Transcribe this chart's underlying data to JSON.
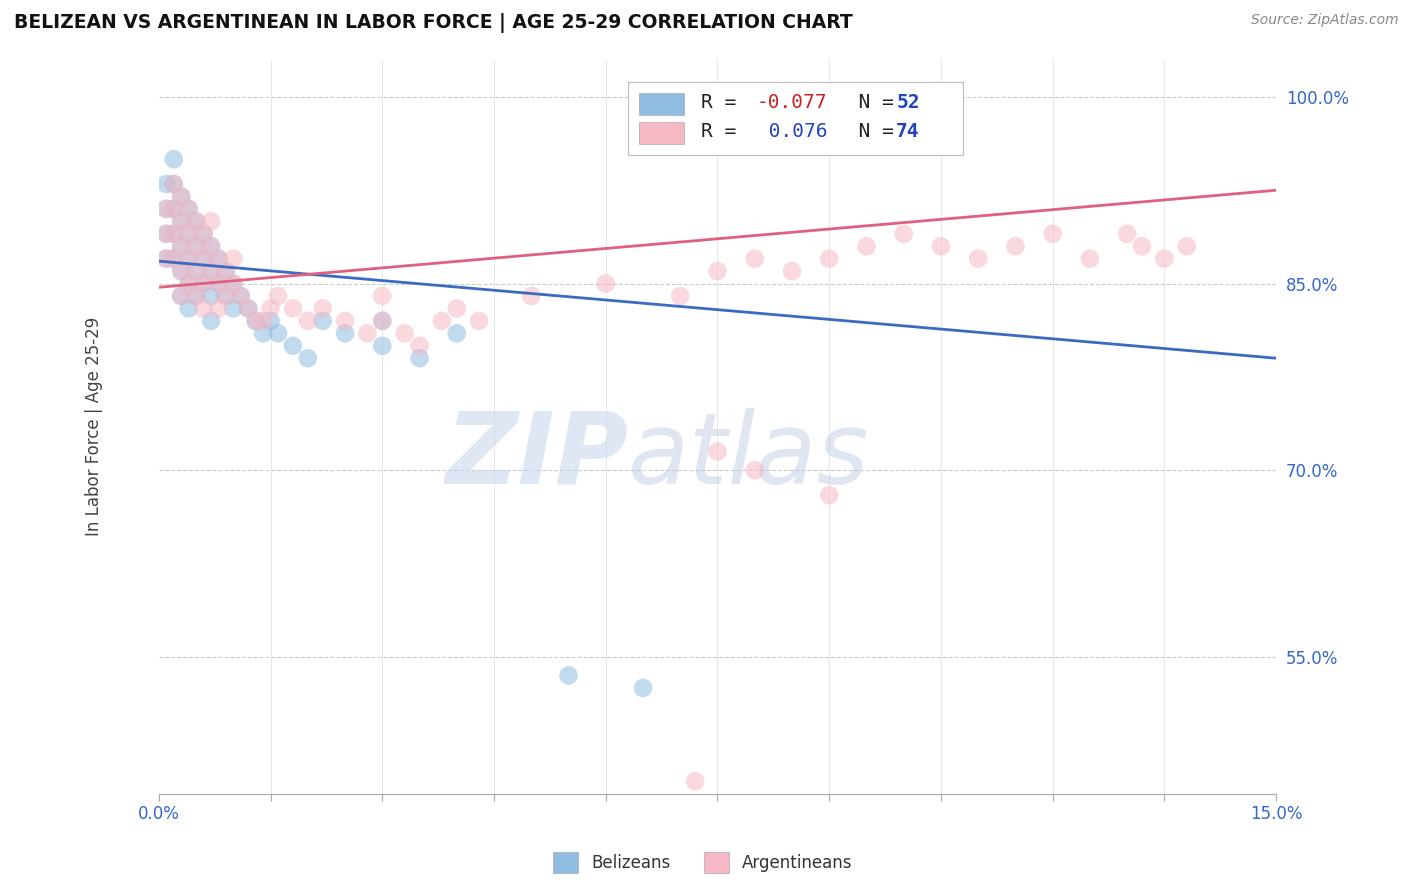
{
  "title": "BELIZEAN VS ARGENTINEAN IN LABOR FORCE | AGE 25-29 CORRELATION CHART",
  "source": "Source: ZipAtlas.com",
  "ylabel": "In Labor Force | Age 25-29",
  "xlim": [
    0.0,
    0.15
  ],
  "ylim": [
    0.44,
    1.03
  ],
  "xticks": [
    0.0,
    0.015,
    0.03,
    0.045,
    0.06,
    0.075,
    0.09,
    0.105,
    0.12,
    0.135,
    0.15
  ],
  "yticks": [
    0.55,
    0.7,
    0.85,
    1.0
  ],
  "ytick_labels": [
    "55.0%",
    "70.0%",
    "85.0%",
    "100.0%"
  ],
  "blue_R": -0.077,
  "blue_N": 52,
  "pink_R": 0.076,
  "pink_N": 74,
  "blue_color": "#8fbce0",
  "pink_color": "#f5b8c4",
  "blue_line_color": "#3a6bc0",
  "pink_line_color": "#e06080",
  "legend_R_color": "#2244bb",
  "watermark_zip": "ZIP",
  "watermark_atlas": "atlas",
  "blue_x": [
    0.001,
    0.001,
    0.001,
    0.001,
    0.002,
    0.002,
    0.002,
    0.002,
    0.002,
    0.003,
    0.003,
    0.003,
    0.003,
    0.003,
    0.004,
    0.004,
    0.004,
    0.004,
    0.004,
    0.005,
    0.005,
    0.005,
    0.005,
    0.006,
    0.006,
    0.006,
    0.007,
    0.007,
    0.007,
    0.007,
    0.008,
    0.008,
    0.009,
    0.009,
    0.01,
    0.01,
    0.011,
    0.012,
    0.013,
    0.014,
    0.015,
    0.016,
    0.018,
    0.02,
    0.022,
    0.025,
    0.03,
    0.03,
    0.035,
    0.04,
    0.055,
    0.065
  ],
  "blue_y": [
    0.93,
    0.91,
    0.89,
    0.87,
    0.95,
    0.93,
    0.91,
    0.89,
    0.87,
    0.92,
    0.9,
    0.88,
    0.86,
    0.84,
    0.91,
    0.89,
    0.87,
    0.85,
    0.83,
    0.9,
    0.88,
    0.86,
    0.84,
    0.89,
    0.87,
    0.85,
    0.88,
    0.86,
    0.84,
    0.82,
    0.87,
    0.85,
    0.86,
    0.84,
    0.85,
    0.83,
    0.84,
    0.83,
    0.82,
    0.81,
    0.82,
    0.81,
    0.8,
    0.79,
    0.82,
    0.81,
    0.82,
    0.8,
    0.79,
    0.81,
    0.535,
    0.525
  ],
  "pink_x": [
    0.001,
    0.001,
    0.001,
    0.002,
    0.002,
    0.002,
    0.002,
    0.003,
    0.003,
    0.003,
    0.003,
    0.003,
    0.004,
    0.004,
    0.004,
    0.004,
    0.005,
    0.005,
    0.005,
    0.005,
    0.006,
    0.006,
    0.006,
    0.006,
    0.007,
    0.007,
    0.007,
    0.008,
    0.008,
    0.008,
    0.009,
    0.009,
    0.01,
    0.01,
    0.011,
    0.012,
    0.013,
    0.014,
    0.015,
    0.016,
    0.018,
    0.02,
    0.022,
    0.025,
    0.028,
    0.03,
    0.03,
    0.033,
    0.035,
    0.038,
    0.04,
    0.043,
    0.05,
    0.06,
    0.07,
    0.075,
    0.08,
    0.085,
    0.09,
    0.095,
    0.1,
    0.105,
    0.11,
    0.115,
    0.12,
    0.125,
    0.13,
    0.132,
    0.135,
    0.138,
    0.075,
    0.08,
    0.09,
    0.072
  ],
  "pink_y": [
    0.91,
    0.89,
    0.87,
    0.93,
    0.91,
    0.89,
    0.87,
    0.92,
    0.9,
    0.88,
    0.86,
    0.84,
    0.91,
    0.89,
    0.87,
    0.85,
    0.9,
    0.88,
    0.86,
    0.84,
    0.89,
    0.87,
    0.85,
    0.83,
    0.9,
    0.88,
    0.86,
    0.87,
    0.85,
    0.83,
    0.86,
    0.84,
    0.87,
    0.85,
    0.84,
    0.83,
    0.82,
    0.82,
    0.83,
    0.84,
    0.83,
    0.82,
    0.83,
    0.82,
    0.81,
    0.84,
    0.82,
    0.81,
    0.8,
    0.82,
    0.83,
    0.82,
    0.84,
    0.85,
    0.84,
    0.86,
    0.87,
    0.86,
    0.87,
    0.88,
    0.89,
    0.88,
    0.87,
    0.88,
    0.89,
    0.87,
    0.89,
    0.88,
    0.87,
    0.88,
    0.715,
    0.7,
    0.68,
    0.45
  ]
}
